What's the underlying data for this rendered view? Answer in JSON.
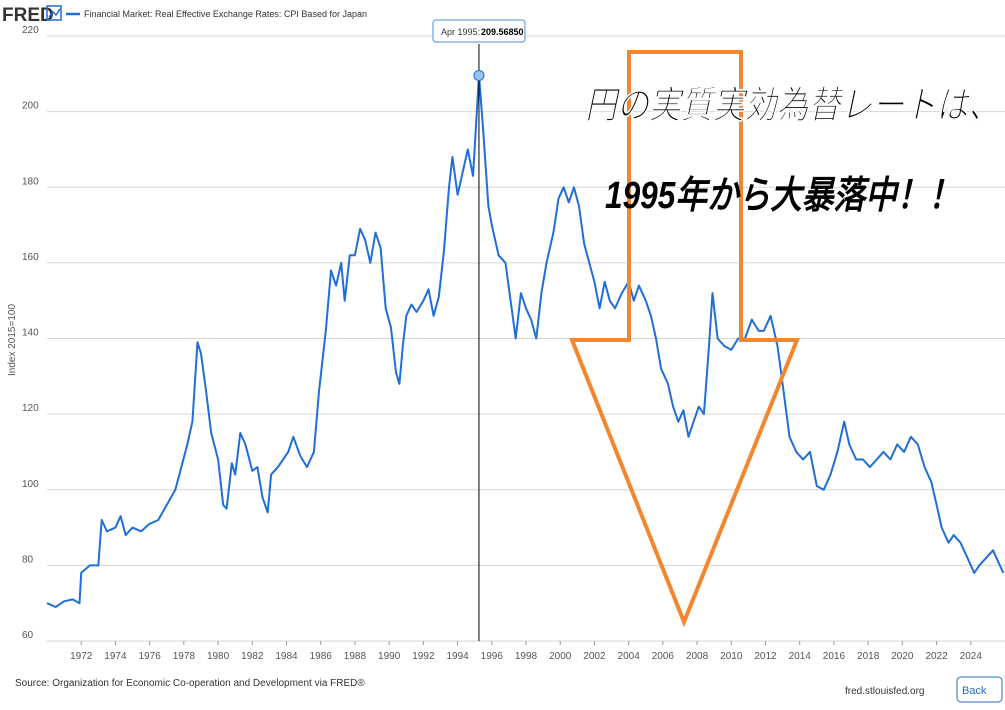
{
  "header": {
    "logo": "FRED",
    "legend": "Financial Market: Real Effective Exchange Rates: CPI Based for Japan"
  },
  "chart_data": {
    "type": "line",
    "y_label": "Index 2015=100",
    "xlim": [
      1970,
      2026
    ],
    "xticks": [
      1972,
      1974,
      1976,
      1978,
      1980,
      1982,
      1984,
      1986,
      1988,
      1990,
      1992,
      1994,
      1996,
      1998,
      2000,
      2002,
      2004,
      2006,
      2008,
      2010,
      2012,
      2014,
      2016,
      2018,
      2020,
      2022,
      2024
    ],
    "ylim": [
      60,
      220
    ],
    "yticks": [
      60,
      80,
      100,
      120,
      140,
      160,
      180,
      200,
      220
    ],
    "grid": true,
    "x": [
      1970.0,
      1970.5,
      1971.0,
      1971.5,
      1971.9,
      1972.0,
      1972.5,
      1973.0,
      1973.2,
      1973.5,
      1974.0,
      1974.3,
      1974.6,
      1975.0,
      1975.5,
      1976.0,
      1976.5,
      1977.0,
      1977.5,
      1977.8,
      1978.2,
      1978.5,
      1978.8,
      1979.0,
      1979.3,
      1979.6,
      1980.0,
      1980.3,
      1980.5,
      1980.8,
      1981.0,
      1981.3,
      1981.6,
      1982.0,
      1982.3,
      1982.6,
      1982.9,
      1983.1,
      1983.5,
      1983.8,
      1984.1,
      1984.4,
      1984.8,
      1985.2,
      1985.6,
      1985.9,
      1986.3,
      1986.6,
      1986.9,
      1987.2,
      1987.4,
      1987.7,
      1988.0,
      1988.3,
      1988.6,
      1988.9,
      1989.2,
      1989.5,
      1989.8,
      1990.1,
      1990.4,
      1990.6,
      1990.8,
      1991.0,
      1991.3,
      1991.6,
      1992.0,
      1992.3,
      1992.6,
      1992.9,
      1993.2,
      1993.5,
      1993.7,
      1994.0,
      1994.3,
      1994.6,
      1994.9,
      1995.25,
      1995.5,
      1995.8,
      1996.0,
      1996.4,
      1996.8,
      1997.1,
      1997.4,
      1997.7,
      1998.0,
      1998.3,
      1998.6,
      1998.9,
      1999.2,
      1999.6,
      1999.9,
      2000.2,
      2000.5,
      2000.8,
      2001.1,
      2001.4,
      2001.7,
      2002.0,
      2002.3,
      2002.6,
      2002.9,
      2003.2,
      2003.6,
      2004.0,
      2004.3,
      2004.6,
      2005.0,
      2005.3,
      2005.6,
      2005.9,
      2006.3,
      2006.6,
      2006.9,
      2007.2,
      2007.5,
      2007.8,
      2008.1,
      2008.4,
      2008.7,
      2008.9,
      2009.2,
      2009.6,
      2010.0,
      2010.4,
      2010.8,
      2011.2,
      2011.6,
      2011.9,
      2012.3,
      2012.7,
      2013.0,
      2013.4,
      2013.8,
      2014.2,
      2014.6,
      2015.0,
      2015.4,
      2015.8,
      2016.2,
      2016.6,
      2016.9,
      2017.3,
      2017.7,
      2018.1,
      2018.5,
      2018.9,
      2019.3,
      2019.7,
      2020.1,
      2020.5,
      2020.9,
      2021.3,
      2021.7,
      2022.0,
      2022.3,
      2022.7,
      2023.0,
      2023.4,
      2023.8,
      2024.2,
      2024.5,
      2024.9,
      2025.3,
      2025.9
    ],
    "series": [
      {
        "name": "Financial Market: Real Effective Exchange Rates: CPI Based for Japan",
        "color": "#1f6fd6",
        "values": [
          70,
          69,
          70.5,
          71,
          70,
          78,
          80,
          80,
          92,
          89,
          90,
          93,
          88,
          90,
          89,
          91,
          92,
          96,
          100,
          105,
          112,
          118,
          139,
          136,
          126,
          115,
          108,
          96,
          95,
          107,
          104,
          115,
          112,
          105,
          106,
          98,
          94,
          104,
          106,
          108,
          110,
          114,
          109,
          106,
          110,
          126,
          142,
          158,
          154,
          160,
          150,
          162,
          162,
          169,
          166,
          160,
          168,
          164,
          148,
          143,
          131,
          128,
          138,
          146,
          149,
          147,
          150,
          153,
          146,
          151,
          163,
          180,
          188,
          178,
          184,
          190,
          183,
          209.5685,
          195,
          175,
          170,
          162,
          160,
          150,
          140,
          152,
          148,
          145,
          140,
          152,
          160,
          168,
          177,
          180,
          176,
          180,
          175,
          165,
          160,
          155,
          148,
          155,
          150,
          148,
          152,
          155,
          150,
          154,
          150,
          146,
          140,
          132,
          128,
          122,
          118,
          121,
          114,
          118,
          122,
          120,
          138,
          152,
          140,
          138,
          137,
          140,
          140,
          145,
          142,
          142,
          146,
          138,
          128,
          114,
          110,
          108,
          110,
          101,
          100,
          104,
          110,
          118,
          112,
          108,
          108,
          106,
          108,
          110,
          108,
          112,
          110,
          114,
          112,
          106,
          102,
          96,
          90,
          86,
          88,
          86,
          82,
          78,
          80,
          82,
          84,
          78
        ]
      }
    ],
    "tooltip": {
      "label": "Apr 1995:",
      "text": "209.56850"
    },
    "annotations": [
      "円の実質実効為替レートは、",
      "1995年から大暴落中！！"
    ],
    "source": "Source: Organization for Economic Co-operation and Development via FRED®"
  },
  "footer": {
    "site": "fred.stlouisfed.org",
    "button": "Back"
  }
}
